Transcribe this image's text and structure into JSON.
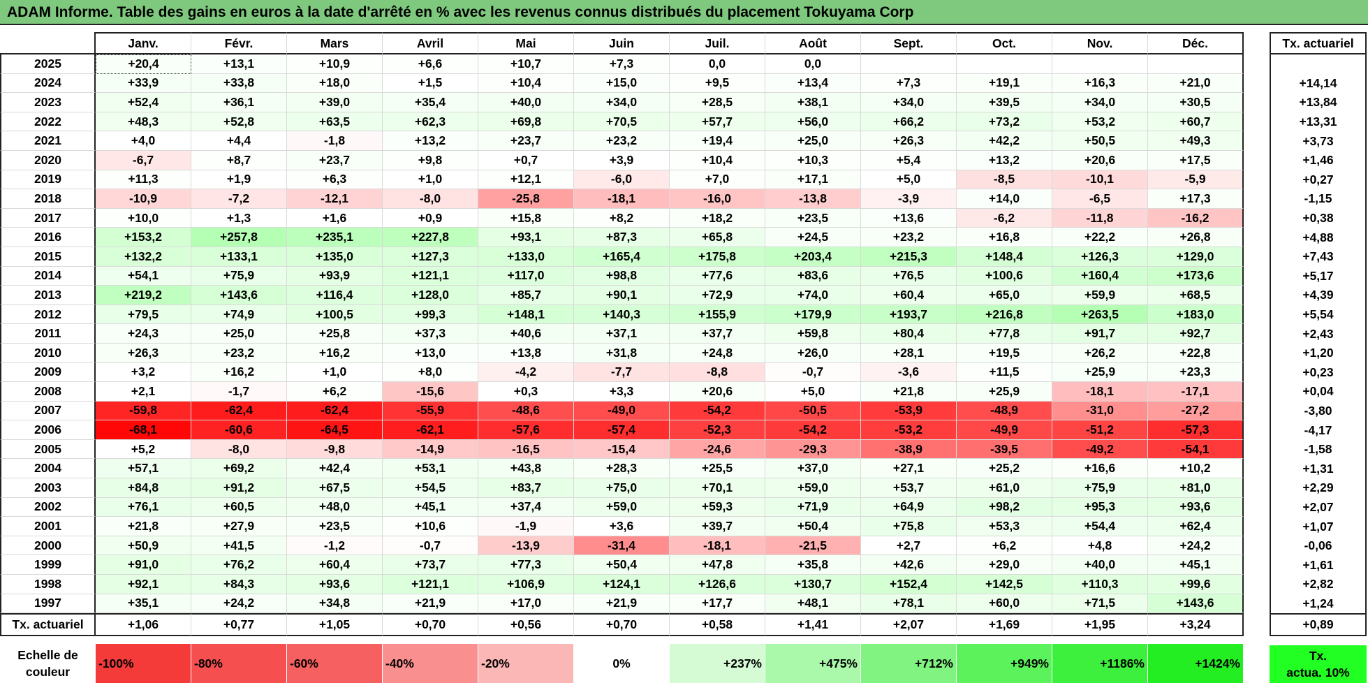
{
  "title": "ADAM Informe. Table des gains en euros à la date d'arrêté en % avec les revenus connus distribués du placement Tokuyama Corp",
  "months": [
    "Janv.",
    "Févr.",
    "Mars",
    "Avril",
    "Mai",
    "Juin",
    "Juil.",
    "Août",
    "Sept.",
    "Oct.",
    "Nov.",
    "Déc."
  ],
  "rate_header": "Tx. actuariel",
  "rows": [
    {
      "year": "2025",
      "values": [
        "+20,4",
        "+13,1",
        "+10,9",
        "+6,6",
        "+10,7",
        "+7,3",
        "0,0",
        "0,0",
        "",
        "",
        "",
        ""
      ],
      "rate": ""
    },
    {
      "year": "2024",
      "values": [
        "+33,9",
        "+33,8",
        "+18,0",
        "+1,5",
        "+10,4",
        "+15,0",
        "+9,5",
        "+13,4",
        "+7,3",
        "+19,1",
        "+16,3",
        "+21,0"
      ],
      "rate": "+14,14"
    },
    {
      "year": "2023",
      "values": [
        "+52,4",
        "+36,1",
        "+39,0",
        "+35,4",
        "+40,0",
        "+34,0",
        "+28,5",
        "+38,1",
        "+34,0",
        "+39,5",
        "+34,0",
        "+30,5"
      ],
      "rate": "+13,84"
    },
    {
      "year": "2022",
      "values": [
        "+48,3",
        "+52,8",
        "+63,5",
        "+62,3",
        "+69,8",
        "+70,5",
        "+57,7",
        "+56,0",
        "+66,2",
        "+73,2",
        "+53,2",
        "+60,7"
      ],
      "rate": "+13,31"
    },
    {
      "year": "2021",
      "values": [
        "+4,0",
        "+4,4",
        "-1,8",
        "+13,2",
        "+23,7",
        "+23,2",
        "+19,4",
        "+25,0",
        "+26,3",
        "+42,2",
        "+50,5",
        "+49,3"
      ],
      "rate": "+3,73"
    },
    {
      "year": "2020",
      "values": [
        "-6,7",
        "+8,7",
        "+23,7",
        "+9,8",
        "+0,7",
        "+3,9",
        "+10,4",
        "+10,3",
        "+5,4",
        "+13,2",
        "+20,6",
        "+17,5"
      ],
      "rate": "+1,46"
    },
    {
      "year": "2019",
      "values": [
        "+11,3",
        "+1,9",
        "+6,3",
        "+1,0",
        "+12,1",
        "-6,0",
        "+7,0",
        "+17,1",
        "+5,0",
        "-8,5",
        "-10,1",
        "-5,9"
      ],
      "rate": "+0,27"
    },
    {
      "year": "2018",
      "values": [
        "-10,9",
        "-7,2",
        "-12,1",
        "-8,0",
        "-25,8",
        "-18,1",
        "-16,0",
        "-13,8",
        "-3,9",
        "+14,0",
        "-6,5",
        "+17,3"
      ],
      "rate": "-1,15"
    },
    {
      "year": "2017",
      "values": [
        "+10,0",
        "+1,3",
        "+1,6",
        "+0,9",
        "+15,8",
        "+8,2",
        "+18,2",
        "+23,5",
        "+13,6",
        "-6,2",
        "-11,8",
        "-16,2"
      ],
      "rate": "+0,38"
    },
    {
      "year": "2016",
      "values": [
        "+153,2",
        "+257,8",
        "+235,1",
        "+227,8",
        "+93,1",
        "+87,3",
        "+65,8",
        "+24,5",
        "+23,2",
        "+16,8",
        "+22,2",
        "+26,8"
      ],
      "rate": "+4,88"
    },
    {
      "year": "2015",
      "values": [
        "+132,2",
        "+133,1",
        "+135,0",
        "+127,3",
        "+133,0",
        "+165,4",
        "+175,8",
        "+203,4",
        "+215,3",
        "+148,4",
        "+126,3",
        "+129,0"
      ],
      "rate": "+7,43"
    },
    {
      "year": "2014",
      "values": [
        "+54,1",
        "+75,9",
        "+93,9",
        "+121,1",
        "+117,0",
        "+98,8",
        "+77,6",
        "+83,6",
        "+76,5",
        "+100,6",
        "+160,4",
        "+173,6"
      ],
      "rate": "+5,17"
    },
    {
      "year": "2013",
      "values": [
        "+219,2",
        "+143,6",
        "+116,4",
        "+128,0",
        "+85,7",
        "+90,1",
        "+72,9",
        "+74,0",
        "+60,4",
        "+65,0",
        "+59,9",
        "+68,5"
      ],
      "rate": "+4,39"
    },
    {
      "year": "2012",
      "values": [
        "+79,5",
        "+74,9",
        "+100,5",
        "+99,3",
        "+148,1",
        "+140,3",
        "+155,9",
        "+179,9",
        "+193,7",
        "+216,8",
        "+263,5",
        "+183,0"
      ],
      "rate": "+5,54"
    },
    {
      "year": "2011",
      "values": [
        "+24,3",
        "+25,0",
        "+25,8",
        "+37,3",
        "+40,6",
        "+37,1",
        "+37,7",
        "+59,8",
        "+80,4",
        "+77,8",
        "+91,7",
        "+92,7"
      ],
      "rate": "+2,43"
    },
    {
      "year": "2010",
      "values": [
        "+26,3",
        "+23,2",
        "+16,2",
        "+13,0",
        "+13,8",
        "+31,8",
        "+24,8",
        "+26,0",
        "+28,1",
        "+19,5",
        "+26,2",
        "+22,8"
      ],
      "rate": "+1,20"
    },
    {
      "year": "2009",
      "values": [
        "+3,2",
        "+16,2",
        "+1,0",
        "+8,0",
        "-4,2",
        "-7,7",
        "-8,8",
        "-0,7",
        "-3,6",
        "+11,5",
        "+25,9",
        "+23,3"
      ],
      "rate": "+0,23"
    },
    {
      "year": "2008",
      "values": [
        "+2,1",
        "-1,7",
        "+6,2",
        "-15,6",
        "+0,3",
        "+3,3",
        "+20,6",
        "+5,0",
        "+21,8",
        "+25,9",
        "-18,1",
        "-17,1"
      ],
      "rate": "+0,04"
    },
    {
      "year": "2007",
      "values": [
        "-59,8",
        "-62,4",
        "-62,4",
        "-55,9",
        "-48,6",
        "-49,0",
        "-54,2",
        "-50,5",
        "-53,9",
        "-48,9",
        "-31,0",
        "-27,2"
      ],
      "rate": "-3,80"
    },
    {
      "year": "2006",
      "values": [
        "-68,1",
        "-60,6",
        "-64,5",
        "-62,1",
        "-57,6",
        "-57,4",
        "-52,3",
        "-54,2",
        "-53,2",
        "-49,9",
        "-51,2",
        "-57,3"
      ],
      "rate": "-4,17"
    },
    {
      "year": "2005",
      "values": [
        "+5,2",
        "-8,0",
        "-9,8",
        "-14,9",
        "-16,5",
        "-15,4",
        "-24,6",
        "-29,3",
        "-38,9",
        "-39,5",
        "-49,2",
        "-54,1"
      ],
      "rate": "-1,58"
    },
    {
      "year": "2004",
      "values": [
        "+57,1",
        "+69,2",
        "+42,4",
        "+53,1",
        "+43,8",
        "+28,3",
        "+25,5",
        "+37,0",
        "+27,1",
        "+25,2",
        "+16,6",
        "+10,2"
      ],
      "rate": "+1,31"
    },
    {
      "year": "2003",
      "values": [
        "+84,8",
        "+91,2",
        "+67,5",
        "+54,5",
        "+83,7",
        "+75,0",
        "+70,1",
        "+59,0",
        "+53,7",
        "+61,0",
        "+75,9",
        "+81,0"
      ],
      "rate": "+2,29"
    },
    {
      "year": "2002",
      "values": [
        "+76,1",
        "+60,5",
        "+48,0",
        "+45,1",
        "+37,4",
        "+59,0",
        "+59,3",
        "+71,9",
        "+64,9",
        "+98,2",
        "+95,3",
        "+93,6"
      ],
      "rate": "+2,07"
    },
    {
      "year": "2001",
      "values": [
        "+21,8",
        "+27,9",
        "+23,5",
        "+10,6",
        "-1,9",
        "+3,6",
        "+39,7",
        "+50,4",
        "+75,8",
        "+53,3",
        "+54,4",
        "+62,4"
      ],
      "rate": "+1,07"
    },
    {
      "year": "2000",
      "values": [
        "+50,9",
        "+41,5",
        "-1,2",
        "-0,7",
        "-13,9",
        "-31,4",
        "-18,1",
        "-21,5",
        "+2,7",
        "+6,2",
        "+4,8",
        "+24,2"
      ],
      "rate": "-0,06"
    },
    {
      "year": "1999",
      "values": [
        "+91,0",
        "+76,2",
        "+60,4",
        "+73,7",
        "+77,3",
        "+50,4",
        "+47,8",
        "+35,8",
        "+42,6",
        "+29,0",
        "+40,0",
        "+45,1"
      ],
      "rate": "+1,61"
    },
    {
      "year": "1998",
      "values": [
        "+92,1",
        "+84,3",
        "+93,6",
        "+121,1",
        "+106,9",
        "+124,1",
        "+126,6",
        "+130,7",
        "+152,4",
        "+142,5",
        "+110,3",
        "+99,6"
      ],
      "rate": "+2,82"
    },
    {
      "year": "1997",
      "values": [
        "+35,1",
        "+24,2",
        "+34,8",
        "+21,9",
        "+17,0",
        "+21,9",
        "+17,7",
        "+48,1",
        "+78,1",
        "+60,0",
        "+71,5",
        "+143,6"
      ],
      "rate": "+1,24"
    }
  ],
  "totals": {
    "label": "Tx. actuariel",
    "values": [
      "+1,06",
      "+0,77",
      "+1,05",
      "+0,70",
      "+0,56",
      "+0,70",
      "+0,58",
      "+1,41",
      "+2,07",
      "+1,69",
      "+1,95",
      "+3,24"
    ],
    "rate": "+0,89"
  },
  "scale": {
    "label_line1": "Echelle de",
    "label_line2": "couleur",
    "items": [
      {
        "text": "-100%",
        "color": "#f53a3a",
        "kind": "neg"
      },
      {
        "text": "-80%",
        "color": "#f54f4f",
        "kind": "neg"
      },
      {
        "text": "-60%",
        "color": "#f76060",
        "kind": "neg"
      },
      {
        "text": "-40%",
        "color": "#f98f8f",
        "kind": "neg"
      },
      {
        "text": "-20%",
        "color": "#fbb6b6",
        "kind": "neg"
      },
      {
        "text": "0%",
        "color": "#ffffff",
        "kind": "mid"
      },
      {
        "text": "+237%",
        "color": "#d4fbd4",
        "kind": "pos"
      },
      {
        "text": "+475%",
        "color": "#aaf8aa",
        "kind": "pos"
      },
      {
        "text": "+712%",
        "color": "#80f380",
        "kind": "pos"
      },
      {
        "text": "+949%",
        "color": "#5cf25c",
        "kind": "pos"
      },
      {
        "text": "+1186%",
        "color": "#3df03d",
        "kind": "pos"
      },
      {
        "text": "+1424%",
        "color": "#22ee22",
        "kind": "pos"
      }
    ],
    "actua_line1": "Tx.",
    "actua_line2": "actua. 10%"
  },
  "colors": {
    "title_bg": "#7fc97f",
    "actua_bg": "#22ff22"
  }
}
